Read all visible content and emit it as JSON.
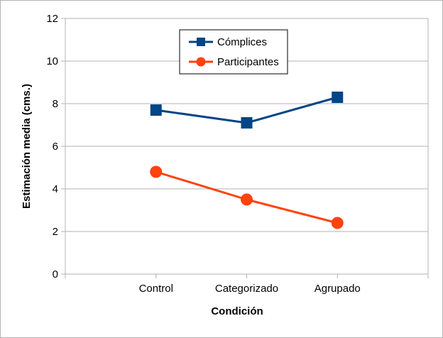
{
  "chart_data": {
    "type": "line",
    "title": "",
    "xlabel": "Condición",
    "ylabel": "Estimación media (cms.)",
    "categories": [
      "Control",
      "Categorizado",
      "Agrupado"
    ],
    "ylim": [
      0,
      12
    ],
    "yticks": [
      0,
      2,
      4,
      6,
      8,
      10,
      12
    ],
    "grid": true,
    "legend_position": "top-center",
    "series": [
      {
        "name": "Cómplices",
        "values": [
          7.7,
          7.1,
          8.3
        ],
        "color": "#004586",
        "marker": "square"
      },
      {
        "name": "Participantes",
        "values": [
          4.8,
          3.5,
          2.4
        ],
        "color": "#ff420e",
        "marker": "circle"
      }
    ]
  }
}
